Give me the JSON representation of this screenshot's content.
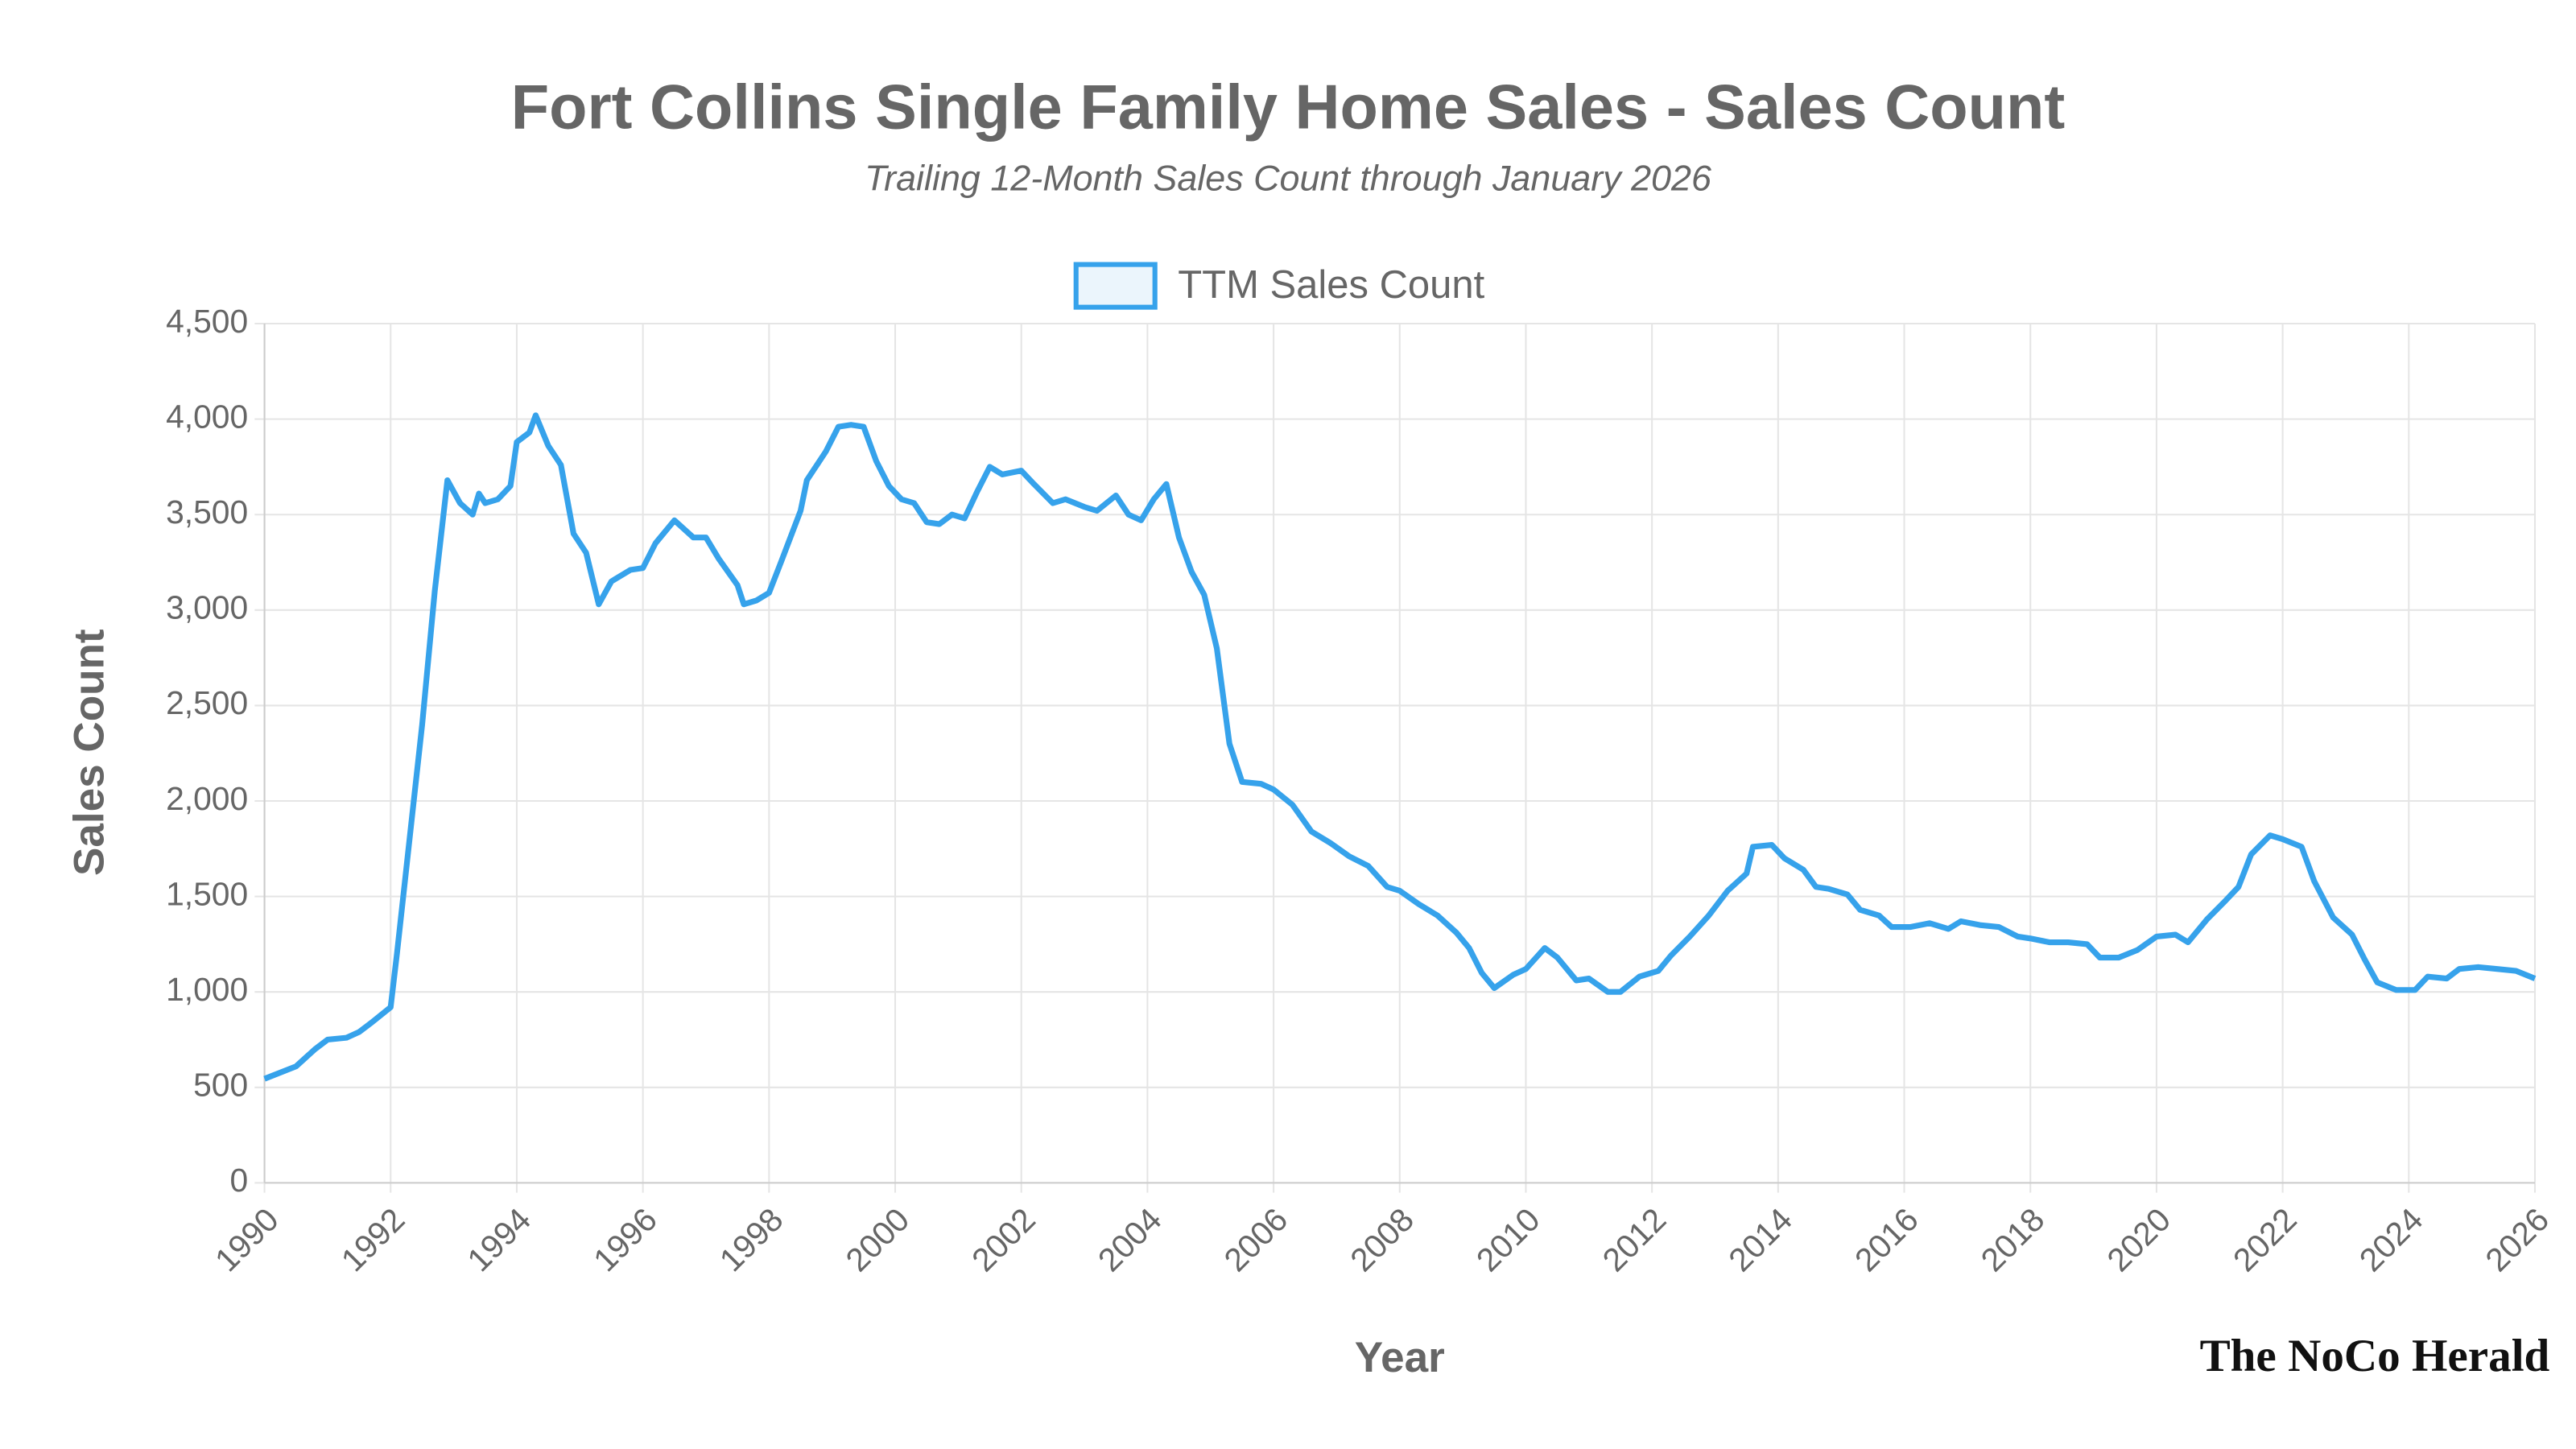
{
  "chart_data": {
    "type": "line",
    "title": "Fort Collins Single Family Home Sales - Sales Count",
    "subtitle": "Trailing 12-Month Sales Count through January 2026",
    "x_label": "Year",
    "y_label": "Sales Count",
    "credit": "The NoCo Herald",
    "x": [
      1990.0,
      1990.5,
      1990.8,
      1991.0,
      1991.3,
      1991.5,
      1991.7,
      1992.0,
      1992.1,
      1992.3,
      1992.5,
      1992.7,
      1992.9,
      1993.1,
      1993.3,
      1993.4,
      1993.5,
      1993.7,
      1993.9,
      1994.0,
      1994.2,
      1994.3,
      1994.5,
      1994.7,
      1994.9,
      1995.1,
      1995.3,
      1995.5,
      1995.8,
      1996.0,
      1996.2,
      1996.5,
      1996.8,
      1997.0,
      1997.2,
      1997.5,
      1997.6,
      1997.8,
      1998.0,
      1998.2,
      1998.5,
      1998.6,
      1998.9,
      1999.1,
      1999.3,
      1999.5,
      1999.7,
      1999.9,
      2000.1,
      2000.3,
      2000.5,
      2000.7,
      2000.9,
      2001.1,
      2001.3,
      2001.5,
      2001.7,
      2002.0,
      2002.2,
      2002.5,
      2002.7,
      2003.0,
      2003.2,
      2003.5,
      2003.7,
      2003.9,
      2004.1,
      2004.3,
      2004.5,
      2004.7,
      2004.9,
      2005.1,
      2005.3,
      2005.5,
      2005.8,
      2006.0,
      2006.3,
      2006.6,
      2006.9,
      2007.2,
      2007.5,
      2007.8,
      2008.0,
      2008.3,
      2008.6,
      2008.9,
      2009.1,
      2009.3,
      2009.5,
      2009.8,
      2010.0,
      2010.3,
      2010.5,
      2010.8,
      2011.0,
      2011.3,
      2011.5,
      2011.8,
      2012.1,
      2012.3,
      2012.6,
      2012.9,
      2013.2,
      2013.5,
      2013.6,
      2013.9,
      2014.1,
      2014.4,
      2014.6,
      2014.8,
      2015.1,
      2015.3,
      2015.6,
      2015.8,
      2016.1,
      2016.4,
      2016.7,
      2016.9,
      2017.2,
      2017.5,
      2017.8,
      2018.0,
      2018.3,
      2018.6,
      2018.9,
      2019.1,
      2019.4,
      2019.7,
      2020.0,
      2020.3,
      2020.5,
      2020.8,
      2021.1,
      2021.3,
      2021.5,
      2021.8,
      2022.0,
      2022.3,
      2022.5,
      2022.8,
      2023.1,
      2023.3,
      2023.5,
      2023.8,
      2024.1,
      2024.3,
      2024.6,
      2024.8,
      2025.1,
      2025.4,
      2025.7,
      2026.0
    ],
    "series": [
      {
        "name": "TTM Sales Count",
        "color": "#36a2eb",
        "fill": "#ebf5fc",
        "values": [
          545,
          610,
          700,
          750,
          760,
          790,
          840,
          920,
          1200,
          1800,
          2400,
          3100,
          3680,
          3560,
          3500,
          3610,
          3560,
          3580,
          3650,
          3880,
          3930,
          4020,
          3860,
          3760,
          3400,
          3300,
          3030,
          3150,
          3210,
          3220,
          3350,
          3470,
          3380,
          3380,
          3270,
          3130,
          3030,
          3050,
          3090,
          3260,
          3520,
          3680,
          3830,
          3960,
          3970,
          3960,
          3780,
          3650,
          3580,
          3560,
          3460,
          3450,
          3500,
          3480,
          3620,
          3750,
          3710,
          3730,
          3660,
          3560,
          3580,
          3540,
          3520,
          3600,
          3500,
          3470,
          3580,
          3660,
          3380,
          3200,
          3080,
          2800,
          2300,
          2100,
          2090,
          2060,
          1980,
          1840,
          1780,
          1710,
          1660,
          1550,
          1530,
          1460,
          1400,
          1310,
          1230,
          1100,
          1020,
          1090,
          1120,
          1230,
          1180,
          1060,
          1070,
          1000,
          1000,
          1080,
          1110,
          1190,
          1290,
          1400,
          1530,
          1620,
          1760,
          1770,
          1700,
          1640,
          1550,
          1540,
          1510,
          1430,
          1400,
          1340,
          1340,
          1360,
          1330,
          1370,
          1350,
          1340,
          1290,
          1280,
          1260,
          1260,
          1250,
          1180,
          1180,
          1220,
          1290,
          1300,
          1260,
          1380,
          1480,
          1550,
          1720,
          1820,
          1800,
          1760,
          1580,
          1390,
          1300,
          1170,
          1050,
          1010,
          1010,
          1080,
          1070,
          1120,
          1130,
          1120,
          1110,
          1070
        ]
      }
    ],
    "xlim": [
      1990,
      2026
    ],
    "xticks": [
      1990,
      1992,
      1994,
      1996,
      1998,
      2000,
      2002,
      2004,
      2006,
      2008,
      2010,
      2012,
      2014,
      2016,
      2018,
      2020,
      2022,
      2024,
      2026
    ],
    "ylim": [
      0,
      4500
    ],
    "yticks": [
      0,
      500,
      {
        "value": 1000,
        "label": "1,000"
      },
      {
        "value": 1500,
        "label": "1,500"
      },
      {
        "value": 2000,
        "label": "2,000"
      },
      {
        "value": 2500,
        "label": "2,500"
      },
      {
        "value": 3000,
        "label": "3,000"
      },
      {
        "value": 3500,
        "label": "3,500"
      },
      {
        "value": 4000,
        "label": "4,000"
      },
      {
        "value": 4500,
        "label": "4,500"
      }
    ],
    "grid": true
  }
}
